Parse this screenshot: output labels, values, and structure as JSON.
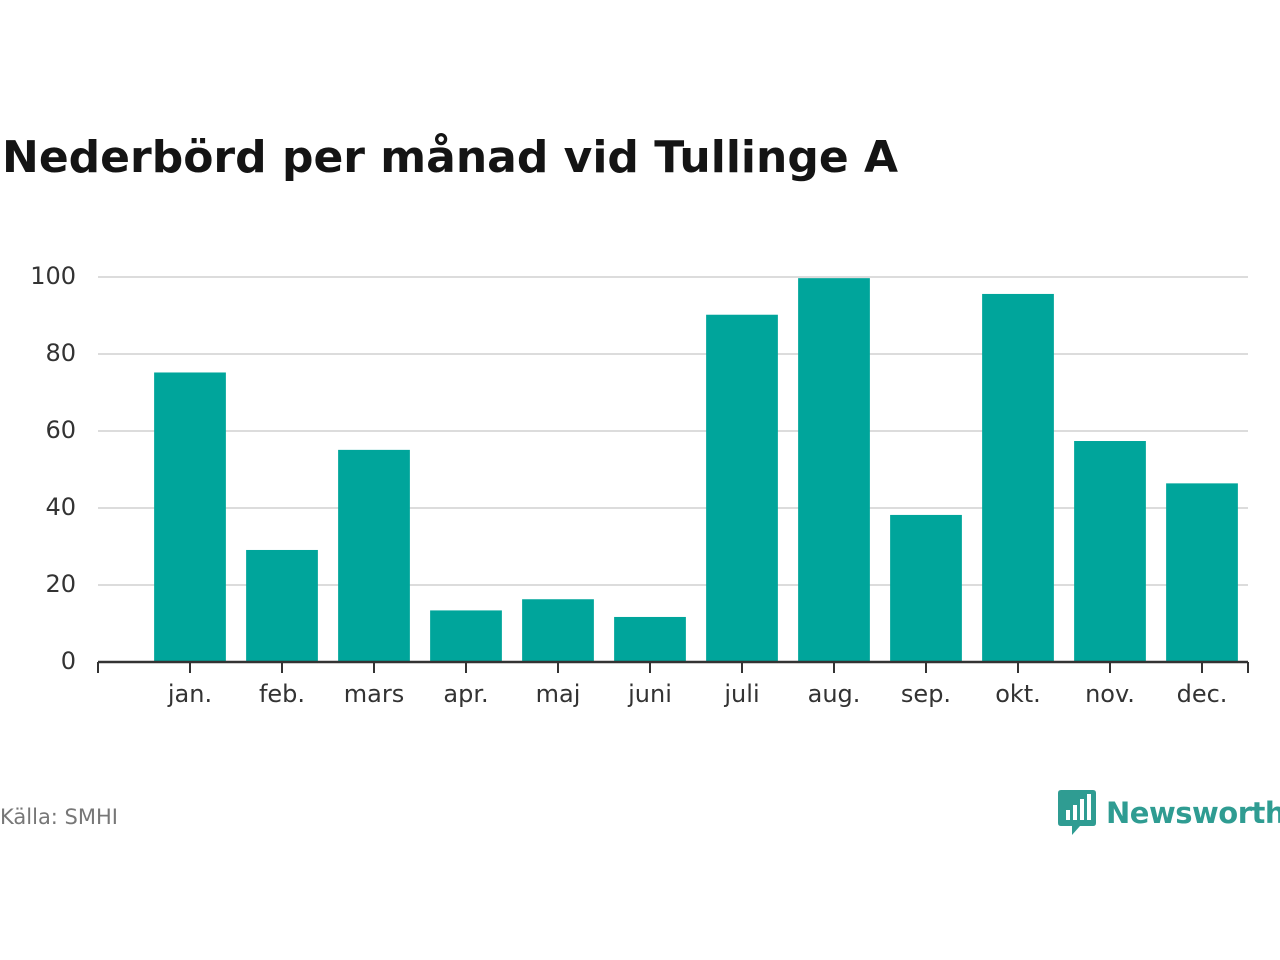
{
  "chart_data": {
    "type": "bar",
    "title": "Nederbörd per månad vid Tullinge A",
    "categories": [
      "jan.",
      "feb.",
      "mars",
      "apr.",
      "maj",
      "juni",
      "juli",
      "aug.",
      "sep.",
      "okt.",
      "nov.",
      "dec."
    ],
    "values": [
      75.2,
      29.1,
      55.1,
      13.4,
      16.3,
      11.7,
      90.2,
      99.7,
      38.2,
      95.6,
      57.4,
      46.4
    ],
    "ylim": [
      0,
      100
    ],
    "yticks": [
      0,
      20,
      40,
      60,
      80,
      100
    ],
    "xlabel": "",
    "ylabel": "",
    "grid": true,
    "colors": {
      "bar": "#00a59b",
      "grid": "#dcdcdc",
      "axis": "#333333"
    }
  },
  "footer": {
    "source": "Källa: SMHI",
    "brand": "Newsworthy",
    "brand_icon": "bar-chart-speech-bubble-icon",
    "brand_color": "#2f9c92"
  }
}
